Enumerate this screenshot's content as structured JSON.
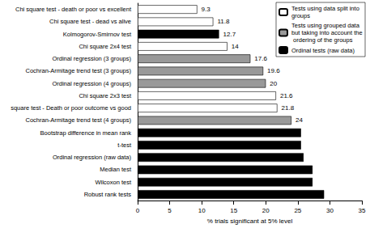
{
  "chart_data": {
    "type": "bar",
    "orientation": "horizontal",
    "stacked": false,
    "grid": false,
    "legend": "top-right",
    "data_labels": true,
    "x_label": "% trials significant at 5% level",
    "xlim": [
      0,
      35
    ],
    "xticks": [
      0,
      5,
      10,
      15,
      20,
      25,
      30,
      35
    ],
    "categories": [
      "Chi square test - death or poor vs excellent",
      "Chi square test - dead vs alive",
      "Kolmogorov-Smirnov test",
      "Chi square 2x4 test",
      "Ordinal regression (3 groups)",
      "Cochran-Armitage trend test (3 groups)",
      "Ordinal regression (4 groups)",
      "Chi square 2x3 test",
      "square test - Death or poor outcome vs good",
      "Cochran-Armitage trend test (4 groups)",
      "Bootstrap difference in mean rank",
      "t-test",
      "Ordinal regression (raw data)",
      "Median test",
      "Wilcoxon test",
      "Robust rank tests"
    ],
    "series": [
      {
        "name": "Tests using data split into groups",
        "color": "#ffffff",
        "values": [
          9.3,
          11.8,
          null,
          14,
          null,
          null,
          null,
          21.6,
          21.8,
          null,
          null,
          null,
          null,
          null,
          null,
          null
        ],
        "value_labels": [
          "9.3",
          "11.8",
          null,
          "14",
          null,
          null,
          null,
          "21.6",
          "21.8",
          null,
          null,
          null,
          null,
          null,
          null,
          null
        ]
      },
      {
        "name": "Tests using grouped data but taking into account the ordering of the groups",
        "color": "#999999",
        "values": [
          null,
          null,
          null,
          null,
          17.6,
          19.6,
          20,
          null,
          null,
          24,
          null,
          null,
          null,
          null,
          null,
          null
        ],
        "value_labels": [
          null,
          null,
          null,
          null,
          "17.6",
          "19.6",
          "20",
          null,
          null,
          "24",
          null,
          null,
          null,
          null,
          null,
          null
        ]
      },
      {
        "name": "Ordinal tests (raw data)",
        "color": "#000000",
        "values": [
          null,
          null,
          12.7,
          null,
          null,
          null,
          null,
          null,
          null,
          null,
          25.5,
          25.5,
          25.9,
          27.3,
          27.3,
          29.1
        ],
        "value_labels": [
          null,
          null,
          "12.7",
          null,
          null,
          null,
          null,
          null,
          null,
          null,
          null,
          null,
          null,
          null,
          null,
          null
        ]
      }
    ]
  }
}
